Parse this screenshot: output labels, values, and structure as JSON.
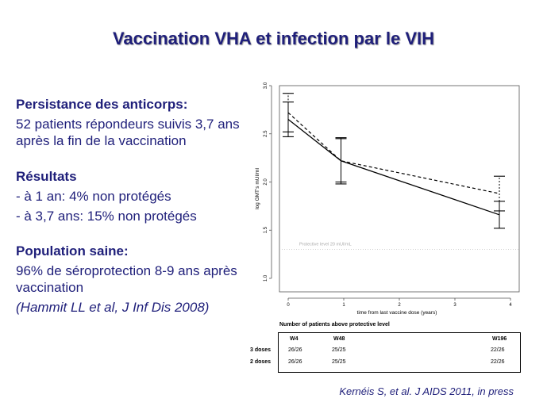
{
  "title": "Vaccination VHA et infection par le VIH",
  "left": {
    "section1_heading": "Persistance des anticorps:",
    "section1_text": "52 patients répondeurs suivis 3,7 ans après la fin de la vaccination",
    "section2_heading": "Résultats",
    "section2_item1": "- à 1 an: 4% non protégés",
    "section2_item2": "- à 3,7 ans: 15% non protégés",
    "section3_heading": "Population saine:",
    "section3_text": "96% de séroprotection 8-9 ans après vaccination",
    "section3_ref": "(Hammit LL et al, J Inf Dis 2008)"
  },
  "chart_data": {
    "type": "line",
    "xlabel": "time from last vaccine dose (years)",
    "ylabel": "log GMT's mUI/ml",
    "xlim": [
      0,
      4
    ],
    "ylim": [
      0.9,
      3.0
    ],
    "x_ticks": [
      "0",
      "1",
      "2",
      "3",
      "4"
    ],
    "y_ticks": [
      "1.0",
      "1.5",
      "2.0",
      "2.5",
      "3.0"
    ],
    "reference_line": {
      "y": 1.3,
      "label": "Protective level 20 mUI/mL"
    },
    "series": [
      {
        "name": "solid",
        "style": "solid",
        "x": [
          0,
          0.95,
          3.8
        ],
        "y": [
          2.65,
          2.22,
          1.66
        ],
        "ci_low": [
          2.47,
          1.98,
          1.52
        ],
        "ci_high": [
          2.83,
          2.46,
          1.8
        ]
      },
      {
        "name": "dashed",
        "style": "dashed",
        "x": [
          0,
          0.95,
          3.8
        ],
        "y": [
          2.72,
          2.22,
          1.88
        ],
        "ci_low": [
          2.52,
          2.0,
          1.7
        ],
        "ci_high": [
          2.92,
          2.45,
          2.06
        ]
      }
    ]
  },
  "table": {
    "title": "Number of patients above protective level",
    "headers": [
      "W4",
      "W48",
      "W196"
    ],
    "rows": [
      {
        "label": "3 doses",
        "values": [
          "26/26",
          "25/25",
          "22/26"
        ]
      },
      {
        "label": "2 doses",
        "values": [
          "26/26",
          "25/25",
          "22/26"
        ]
      }
    ]
  },
  "citation": "Kernéis S, et al. J AIDS 2011, in press"
}
